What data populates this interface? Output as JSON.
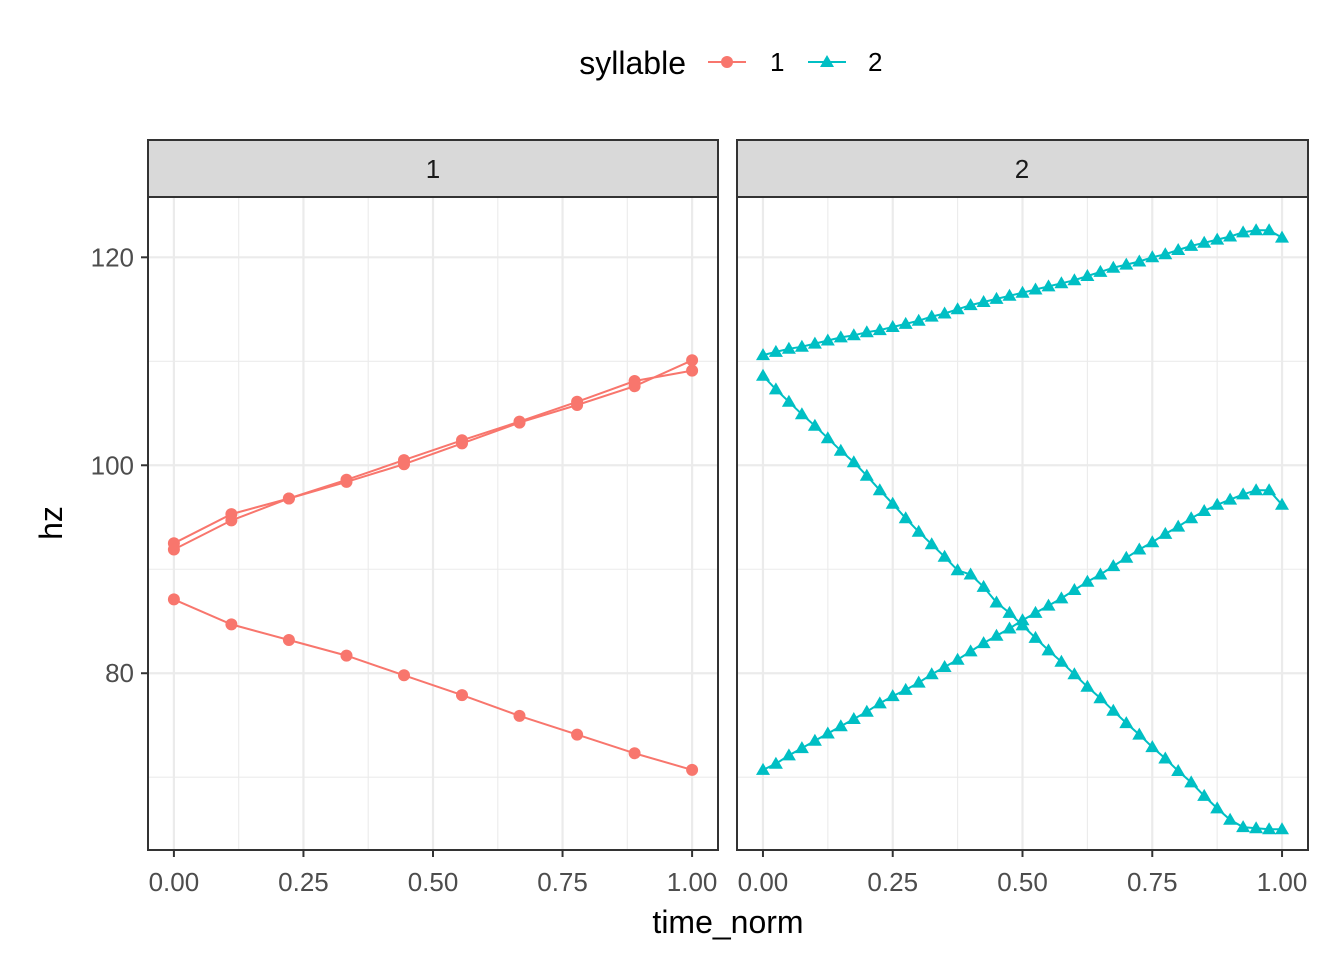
{
  "chart_data": {
    "type": "line",
    "xlabel": "time_norm",
    "ylabel": "hz",
    "xlim": [
      -0.05,
      1.05
    ],
    "ylim": [
      63,
      125.8
    ],
    "x_ticks": [
      "0.00",
      "0.25",
      "0.50",
      "0.75",
      "1.00"
    ],
    "x_tick_values": [
      0,
      0.25,
      0.5,
      0.75,
      1.0
    ],
    "y_ticks": [
      "80",
      "100",
      "120"
    ],
    "y_tick_values": [
      80,
      100,
      120
    ],
    "grid": true,
    "legend": {
      "title": "syllable",
      "position": "top",
      "entries": [
        {
          "label": "1",
          "color": "#F8766D",
          "shape": "circle"
        },
        {
          "label": "2",
          "color": "#00BFC4",
          "shape": "triangle"
        }
      ]
    },
    "facets": [
      {
        "strip": "1",
        "series": [
          {
            "syllable": "1",
            "x": [
              0,
              0.111,
              0.222,
              0.333,
              0.444,
              0.556,
              0.667,
              0.778,
              0.889,
              1.0
            ],
            "y": [
              92.5,
              95.3,
              96.8,
              98.6,
              100.5,
              102.4,
              104.2,
              106.1,
              108.1,
              109.1
            ]
          },
          {
            "syllable": "1",
            "x": [
              0,
              0.111,
              0.222,
              0.333,
              0.444,
              0.556,
              0.667,
              0.778,
              0.889,
              1.0
            ],
            "y": [
              91.9,
              94.7,
              96.8,
              98.4,
              100.1,
              102.1,
              104.1,
              105.8,
              107.6,
              110.1
            ]
          },
          {
            "syllable": "1",
            "x": [
              0,
              0.111,
              0.222,
              0.333,
              0.444,
              0.556,
              0.667,
              0.778,
              0.889,
              1.0
            ],
            "y": [
              87.1,
              84.7,
              83.2,
              81.7,
              79.8,
              77.9,
              75.9,
              74.1,
              72.3,
              70.7
            ]
          }
        ]
      },
      {
        "strip": "2",
        "series": [
          {
            "syllable": "2",
            "x_start": 0,
            "x_end": 1,
            "n": 41,
            "y": [
              110.6,
              110.9,
              111.2,
              111.4,
              111.7,
              112.0,
              112.3,
              112.5,
              112.8,
              113.0,
              113.3,
              113.6,
              113.9,
              114.3,
              114.6,
              115.0,
              115.4,
              115.7,
              116.0,
              116.3,
              116.6,
              116.9,
              117.2,
              117.5,
              117.8,
              118.2,
              118.6,
              119.0,
              119.3,
              119.6,
              120.0,
              120.3,
              120.7,
              121.1,
              121.4,
              121.7,
              122.0,
              122.4,
              122.6,
              122.6,
              121.9
            ]
          },
          {
            "syllable": "2",
            "x_start": 0,
            "x_end": 1,
            "n": 41,
            "y": [
              108.6,
              107.3,
              106.1,
              104.9,
              103.8,
              102.6,
              101.4,
              100.3,
              99.0,
              97.6,
              96.3,
              94.9,
              93.6,
              92.4,
              91.2,
              89.9,
              89.5,
              88.3,
              86.8,
              85.8,
              84.6,
              83.4,
              82.2,
              81.1,
              79.9,
              78.7,
              77.6,
              76.4,
              75.2,
              74.1,
              72.9,
              71.8,
              70.6,
              69.5,
              68.2,
              67.0,
              65.9,
              65.2,
              65.1,
              65.0,
              65.0
            ]
          },
          {
            "syllable": "2",
            "x_start": 0,
            "x_end": 1,
            "n": 41,
            "y": [
              70.7,
              71.3,
              72.1,
              72.8,
              73.5,
              74.2,
              74.9,
              75.6,
              76.3,
              77.1,
              77.8,
              78.4,
              79.1,
              79.9,
              80.6,
              81.3,
              82.1,
              82.9,
              83.6,
              84.3,
              85.1,
              85.8,
              86.5,
              87.2,
              88.0,
              88.8,
              89.5,
              90.3,
              91.1,
              91.9,
              92.6,
              93.4,
              94.1,
              94.9,
              95.6,
              96.2,
              96.7,
              97.2,
              97.6,
              97.6,
              96.2
            ]
          }
        ]
      }
    ]
  }
}
